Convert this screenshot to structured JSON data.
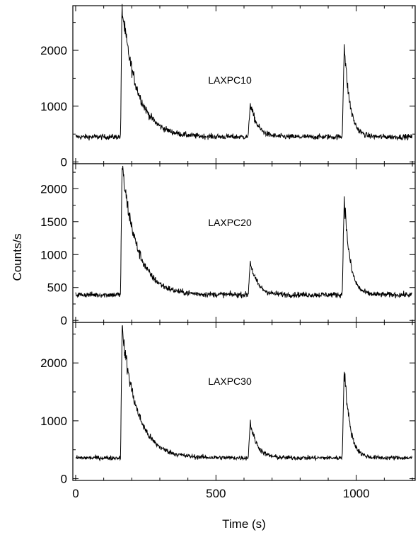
{
  "chart_data": {
    "type": "line",
    "layout": "stacked-panels",
    "xlabel": "Time (s)",
    "ylabel": "Counts/s",
    "xlim": [
      -10,
      1210
    ],
    "xticks": [
      0,
      500,
      1000
    ],
    "colors": {
      "line": "#000000",
      "axes": "#000000"
    },
    "panels": [
      {
        "label": "LAXPC10",
        "ylim": [
          -30,
          2800
        ],
        "yticks": [
          0,
          1000,
          2000
        ],
        "baseline": 450,
        "bursts": [
          {
            "start": 160,
            "peak_time": 165,
            "peak": 2750,
            "decay": 55
          },
          {
            "start": 615,
            "peak_time": 622,
            "peak": 1060,
            "decay": 25
          },
          {
            "start": 950,
            "peak_time": 957,
            "peak": 2120,
            "decay": 20
          }
        ]
      },
      {
        "label": "LAXPC20",
        "ylim": [
          -30,
          2380
        ],
        "yticks": [
          0,
          500,
          1000,
          1500,
          2000
        ],
        "baseline": 390,
        "bursts": [
          {
            "start": 160,
            "peak_time": 165,
            "peak": 2340,
            "decay": 55
          },
          {
            "start": 615,
            "peak_time": 622,
            "peak": 900,
            "decay": 25
          },
          {
            "start": 950,
            "peak_time": 957,
            "peak": 1900,
            "decay": 20
          }
        ]
      },
      {
        "label": "LAXPC30",
        "ylim": [
          -30,
          2700
        ],
        "yticks": [
          0,
          1000,
          2000
        ],
        "baseline": 360,
        "bursts": [
          {
            "start": 160,
            "peak_time": 165,
            "peak": 2580,
            "decay": 55
          },
          {
            "start": 615,
            "peak_time": 622,
            "peak": 980,
            "decay": 25
          },
          {
            "start": 950,
            "peak_time": 957,
            "peak": 1950,
            "decay": 20
          }
        ]
      }
    ]
  }
}
